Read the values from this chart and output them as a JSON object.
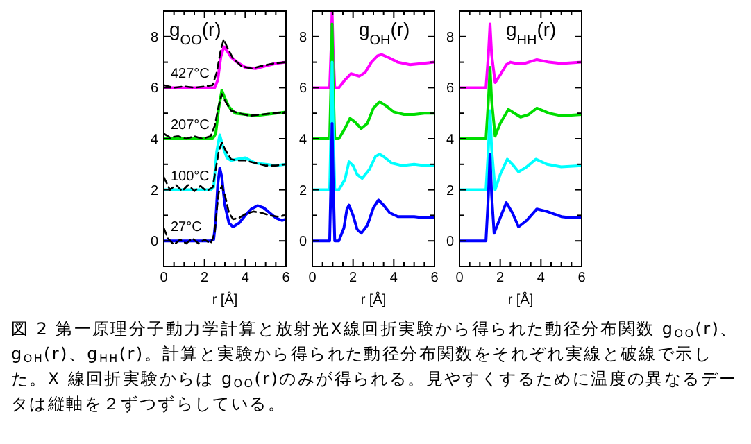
{
  "chart_data": [
    {
      "type": "line",
      "title": "g$_{OO}$(r)",
      "xlabel": "r [Å]",
      "xlim": [
        0,
        6
      ],
      "ylim": [
        -1,
        9
      ],
      "xticks": [
        0,
        {
          "value": 0.5,
          "label": null
        },
        {
          "value": 1,
          "label": null
        },
        {
          "value": 1.5,
          "label": null
        },
        2,
        {
          "value": 2.5,
          "label": null
        },
        {
          "value": 3,
          "label": null
        },
        {
          "value": 3.5,
          "label": null
        },
        4,
        {
          "value": 4.5,
          "label": null
        },
        {
          "value": 5,
          "label": null
        },
        {
          "value": 5.5,
          "label": null
        },
        6
      ],
      "yticks": [
        0,
        {
          "value": 1,
          "label": null
        },
        2,
        {
          "value": 3,
          "label": null
        },
        4,
        {
          "value": 5,
          "label": null
        },
        6,
        {
          "value": 7,
          "label": null
        },
        8
      ],
      "series": [
        {
          "name": "427°C",
          "color": "#ff00ff",
          "x": [
            0,
            2.5,
            2.65,
            2.8,
            2.95,
            3.1,
            3.3,
            3.6,
            4.0,
            4.5,
            5.0,
            5.5,
            6.0
          ],
          "values": [
            6,
            6,
            6.3,
            7.2,
            7.6,
            7.45,
            7.2,
            7.0,
            6.8,
            6.75,
            6.85,
            6.95,
            7.0
          ]
        },
        {
          "name": "207°C",
          "color": "#00dd00",
          "x": [
            0,
            2.4,
            2.55,
            2.7,
            2.85,
            3.0,
            3.2,
            3.5,
            4.0,
            4.5,
            5.0,
            5.5,
            6.0
          ],
          "values": [
            4,
            4,
            4.2,
            5.2,
            5.9,
            5.6,
            5.25,
            5.0,
            4.95,
            4.9,
            4.95,
            5.0,
            5.05
          ]
        },
        {
          "name": "100°C",
          "color": "#00ffff",
          "x": [
            0,
            2.3,
            2.45,
            2.6,
            2.75,
            2.9,
            3.1,
            3.3,
            3.6,
            4.0,
            4.5,
            5.0,
            5.5,
            6.0
          ],
          "values": [
            2,
            2,
            2.1,
            3.5,
            4.15,
            3.7,
            3.25,
            3.15,
            3.2,
            3.25,
            3.05,
            3.0,
            2.95,
            3.0
          ]
        },
        {
          "name": "27°C",
          "color": "#0000ff",
          "x": [
            0,
            2.3,
            2.45,
            2.55,
            2.65,
            2.75,
            2.85,
            3.0,
            3.2,
            3.4,
            3.7,
            4.0,
            4.3,
            4.6,
            4.9,
            5.2,
            5.5,
            5.8,
            6.0
          ],
          "values": [
            0,
            0,
            0.05,
            0.8,
            2.2,
            2.85,
            2.5,
            1.4,
            0.7,
            0.55,
            0.7,
            1.0,
            1.25,
            1.38,
            1.3,
            1.1,
            0.9,
            0.8,
            0.85
          ]
        },
        {
          "color": "#000000",
          "line_style": "dashed",
          "x": [
            0,
            0.5,
            1,
            1.5,
            2,
            2.4,
            2.6,
            2.8,
            2.95,
            3.1,
            3.4,
            3.8,
            4.3,
            4.8,
            5.4,
            6.0
          ],
          "values": [
            6.1,
            6.0,
            6.05,
            6.0,
            6.05,
            6.1,
            6.6,
            7.5,
            7.9,
            7.6,
            7.15,
            6.85,
            6.75,
            6.85,
            6.95,
            7.0
          ]
        },
        {
          "color": "#000000",
          "line_style": "dashed",
          "x": [
            0,
            0.3,
            0.7,
            1.1,
            1.5,
            1.9,
            2.3,
            2.5,
            2.7,
            2.85,
            3.0,
            3.3,
            3.7,
            4.2,
            4.8,
            5.4,
            6.0
          ],
          "values": [
            4.2,
            4.05,
            4.1,
            4.0,
            4.1,
            4.0,
            4.1,
            4.5,
            5.3,
            5.75,
            5.5,
            5.1,
            5.0,
            4.9,
            4.95,
            5.0,
            5.05
          ]
        },
        {
          "color": "#000000",
          "line_style": "dashed",
          "x": [
            0,
            0.3,
            0.6,
            0.9,
            1.2,
            1.5,
            1.8,
            2.1,
            2.4,
            2.55,
            2.7,
            2.85,
            3.0,
            3.3,
            3.6,
            4.0,
            4.5,
            5.0,
            5.5,
            6.0
          ],
          "values": [
            2.5,
            2.0,
            2.2,
            1.95,
            2.2,
            1.95,
            2.15,
            1.95,
            2.1,
            2.8,
            3.5,
            3.85,
            3.6,
            3.2,
            3.15,
            3.15,
            3.05,
            2.95,
            2.95,
            3.0
          ]
        },
        {
          "color": "#000000",
          "line_style": "dashed",
          "x": [
            0,
            0.2,
            0.5,
            0.8,
            1.1,
            1.4,
            1.7,
            2.0,
            2.3,
            2.5,
            2.6,
            2.7,
            2.85,
            3.0,
            3.2,
            3.4,
            3.7,
            4.0,
            4.4,
            4.8,
            5.2,
            5.6,
            6.0
          ],
          "values": [
            0.5,
            0.1,
            -0.15,
            0.05,
            -0.1,
            0.1,
            -0.1,
            0.05,
            -0.1,
            0.3,
            1.2,
            1.9,
            2.15,
            1.8,
            1.1,
            0.85,
            0.9,
            1.05,
            1.15,
            1.1,
            1.0,
            0.95,
            1.0
          ]
        }
      ],
      "annotations": [
        "図 2 第一原理分子動力学計算と放射光X線回折実験から得られた動径分布関数 g$_{OO}$(r)、g$_{OH}$(r)、g$_{HH}$(r)。計算と実験から得られた動径分布関数をそれぞれ実線と破線で示した。X 線回折実験からは g$_{OO}$(r)のみが得られる。見やすくするために温度の異なるデータは縦軸を２ずつずらしている。"
      ]
    },
    {
      "type": "line",
      "title": "g$_{OH}$(r)",
      "xlabel": "r [Å]",
      "xlim": [
        0,
        6
      ],
      "ylim": [
        -1,
        9
      ],
      "xticks": [
        0,
        {
          "value": 0.5,
          "label": null
        },
        {
          "value": 1,
          "label": null
        },
        {
          "value": 1.5,
          "label": null
        },
        2,
        {
          "value": 2.5,
          "label": null
        },
        {
          "value": 3,
          "label": null
        },
        {
          "value": 3.5,
          "label": null
        },
        4,
        {
          "value": 4.5,
          "label": null
        },
        {
          "value": 5,
          "label": null
        },
        {
          "value": 5.5,
          "label": null
        },
        6
      ],
      "yticks": [
        0,
        {
          "value": 1,
          "label": null
        },
        2,
        {
          "value": 3,
          "label": null
        },
        4,
        {
          "value": 5,
          "label": null
        },
        6,
        {
          "value": 7,
          "label": null
        },
        8
      ],
      "series": [
        {
          "color": "#ff00ff",
          "x": [
            0,
            0.85,
            0.92,
            0.97,
            1.02,
            1.1,
            1.3,
            1.6,
            1.9,
            2.1,
            2.3,
            2.6,
            2.9,
            3.2,
            3.4,
            3.7,
            4.2,
            4.8,
            5.4,
            6.0
          ],
          "values": [
            6,
            6,
            7.5,
            9,
            7.5,
            6,
            6,
            6.3,
            6.55,
            6.5,
            6.45,
            6.6,
            7.0,
            7.25,
            7.3,
            7.2,
            7.0,
            6.9,
            6.95,
            7.0
          ]
        },
        {
          "color": "#00dd00",
          "x": [
            0,
            0.85,
            0.92,
            0.97,
            1.02,
            1.1,
            1.3,
            1.6,
            1.85,
            2.1,
            2.4,
            2.7,
            3.0,
            3.3,
            3.6,
            4.0,
            4.5,
            5.0,
            5.5,
            6.0
          ],
          "values": [
            4,
            4,
            6.3,
            8.5,
            6.3,
            4,
            4,
            4.4,
            4.8,
            4.65,
            4.4,
            4.6,
            5.2,
            5.45,
            5.3,
            5.05,
            4.95,
            4.95,
            5.0,
            5.0
          ]
        },
        {
          "color": "#00ffff",
          "x": [
            0,
            0.85,
            0.92,
            0.97,
            1.02,
            1.1,
            1.3,
            1.6,
            1.8,
            2.0,
            2.2,
            2.45,
            2.8,
            3.1,
            3.3,
            3.5,
            3.9,
            4.4,
            5.0,
            5.5,
            6.0
          ],
          "values": [
            2,
            2,
            4.5,
            7.0,
            4.5,
            2,
            2,
            2.4,
            3.1,
            2.95,
            2.6,
            2.45,
            2.8,
            3.3,
            3.4,
            3.3,
            3.05,
            2.95,
            3.0,
            2.95,
            2.95
          ]
        },
        {
          "color": "#0000ff",
          "x": [
            0,
            0.85,
            0.92,
            0.97,
            1.02,
            1.1,
            1.3,
            1.55,
            1.7,
            1.8,
            2.0,
            2.2,
            2.4,
            2.7,
            3.0,
            3.25,
            3.5,
            3.8,
            4.2,
            4.6,
            5.0,
            5.5,
            6.0
          ],
          "values": [
            0,
            0,
            2.5,
            4.6,
            2.5,
            0,
            0,
            0.5,
            1.25,
            1.4,
            1.0,
            0.45,
            0.3,
            0.6,
            1.3,
            1.6,
            1.4,
            1.1,
            0.95,
            0.95,
            0.95,
            0.9,
            0.9
          ]
        }
      ]
    },
    {
      "type": "line",
      "title": "g$_{HH}$(r)",
      "xlabel": "r [Å]",
      "xlim": [
        0,
        6
      ],
      "ylim": [
        -1,
        9
      ],
      "xticks": [
        0,
        {
          "value": 0.5,
          "label": null
        },
        {
          "value": 1,
          "label": null
        },
        {
          "value": 1.5,
          "label": null
        },
        2,
        {
          "value": 2.5,
          "label": null
        },
        {
          "value": 3,
          "label": null
        },
        {
          "value": 3.5,
          "label": null
        },
        4,
        {
          "value": 4.5,
          "label": null
        },
        {
          "value": 5,
          "label": null
        },
        {
          "value": 5.5,
          "label": null
        },
        6
      ],
      "yticks": [
        0,
        {
          "value": 1,
          "label": null
        },
        2,
        {
          "value": 3,
          "label": null
        },
        4,
        {
          "value": 5,
          "label": null
        },
        6,
        {
          "value": 7,
          "label": null
        },
        8
      ],
      "series": [
        {
          "color": "#ff00ff",
          "x": [
            0,
            1.3,
            1.42,
            1.5,
            1.58,
            1.75,
            2.0,
            2.3,
            2.5,
            2.8,
            3.2,
            3.8,
            4.4,
            5.0,
            6.0
          ],
          "values": [
            6,
            6,
            7.3,
            8.5,
            7.3,
            6.2,
            6.5,
            6.9,
            7.0,
            6.95,
            6.95,
            7.1,
            7.0,
            6.95,
            7.0
          ]
        },
        {
          "color": "#00dd00",
          "x": [
            0,
            1.3,
            1.42,
            1.5,
            1.58,
            1.75,
            2.0,
            2.4,
            2.7,
            3.0,
            3.4,
            3.8,
            4.4,
            5.0,
            6.0
          ],
          "values": [
            4,
            4,
            5.5,
            6.8,
            5.5,
            4.1,
            4.6,
            5.15,
            5.0,
            4.85,
            4.95,
            5.2,
            5.0,
            4.9,
            4.95
          ]
        },
        {
          "color": "#00ffff",
          "x": [
            0,
            1.3,
            1.42,
            1.5,
            1.58,
            1.75,
            2.0,
            2.35,
            2.6,
            2.9,
            3.3,
            3.75,
            4.3,
            5.0,
            6.0
          ],
          "values": [
            2,
            2,
            3.6,
            5.1,
            3.6,
            2.0,
            2.6,
            3.2,
            3.0,
            2.7,
            2.9,
            3.2,
            3.0,
            2.9,
            2.95
          ]
        },
        {
          "color": "#0000ff",
          "x": [
            0,
            1.3,
            1.42,
            1.5,
            1.58,
            1.7,
            2.0,
            2.3,
            2.6,
            2.9,
            3.3,
            3.8,
            4.3,
            5.0,
            5.5,
            6.0
          ],
          "values": [
            0,
            0,
            1.8,
            3.4,
            1.8,
            0.3,
            0.9,
            1.5,
            1.1,
            0.55,
            0.8,
            1.25,
            1.15,
            0.95,
            0.9,
            0.9
          ]
        }
      ]
    }
  ]
}
